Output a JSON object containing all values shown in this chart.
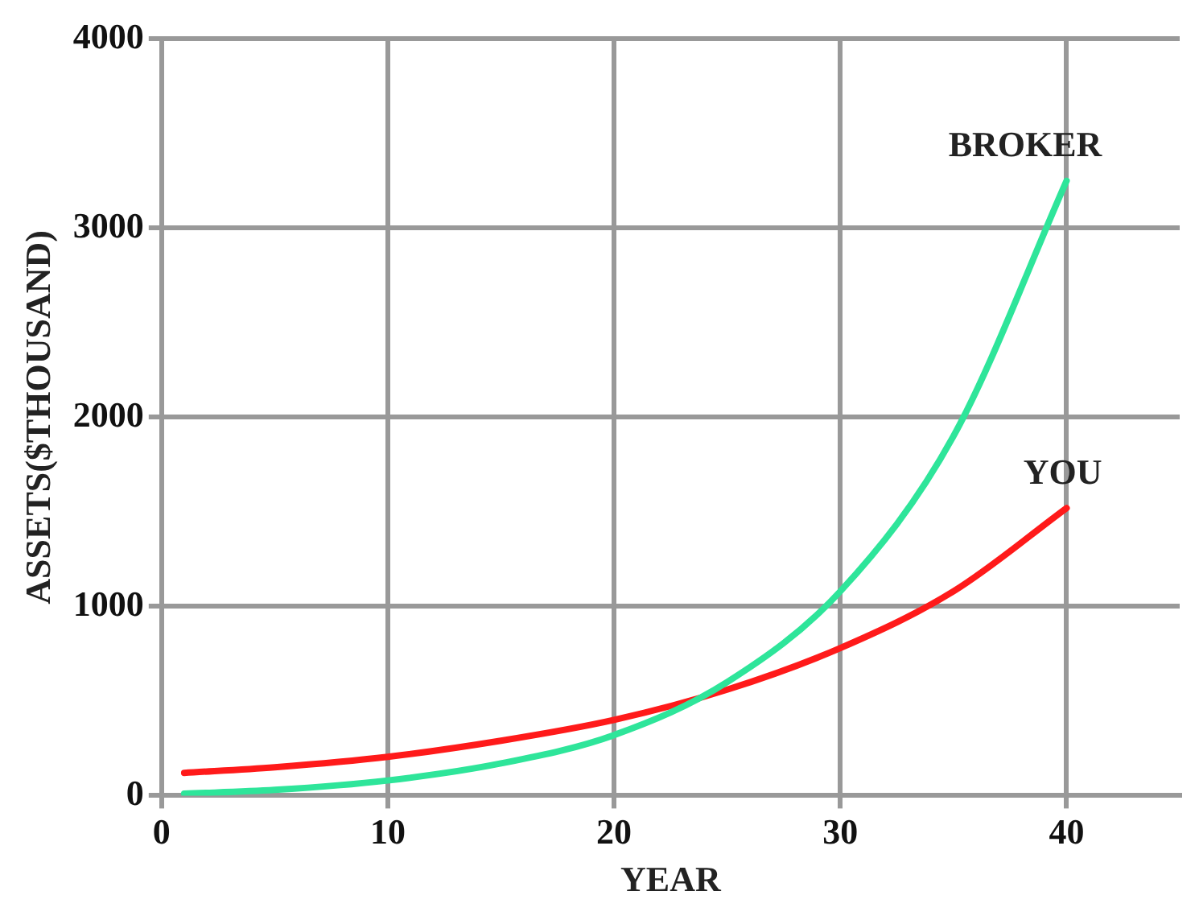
{
  "chart_data": {
    "type": "line",
    "xlabel": "YEAR",
    "ylabel": "ASSETS($THOUSAND)",
    "xlim": [
      0,
      45
    ],
    "xticks": [
      0,
      10,
      20,
      30,
      40
    ],
    "ylim": [
      0,
      4000
    ],
    "yticks": [
      0,
      1000,
      2000,
      3000,
      4000
    ],
    "grid": true,
    "legend": false,
    "marker": "none",
    "line_style": "solid",
    "series": [
      {
        "name": "BROKER",
        "color": "#2ee59a",
        "x": [
          1,
          5,
          10,
          15,
          20,
          25,
          30,
          35,
          40
        ],
        "values": [
          10,
          30,
          80,
          170,
          320,
          600,
          1080,
          1900,
          3250
        ]
      },
      {
        "name": "YOU",
        "color": "#ff1a1a",
        "x": [
          1,
          5,
          10,
          15,
          20,
          25,
          30,
          35,
          40
        ],
        "values": [
          120,
          150,
          205,
          290,
          400,
          560,
          780,
          1080,
          1520
        ]
      }
    ]
  }
}
